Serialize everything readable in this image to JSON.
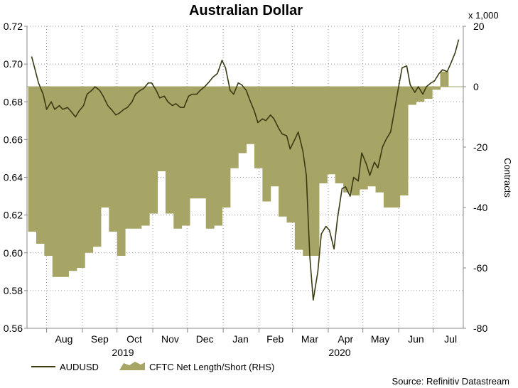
{
  "chart_data": {
    "type": "line",
    "title": "Australian Dollar",
    "right_axis_unit": "x 1,000",
    "ylabel_right": "Contracts",
    "source": "Source: Refinitiv Datastream",
    "year_labels": [
      "2019",
      "2020"
    ],
    "x_tick_labels": [
      "Aug",
      "Sep",
      "Oct",
      "Nov",
      "Dec",
      "Jan",
      "Feb",
      "Mar",
      "Apr",
      "May",
      "Jun",
      "Jul"
    ],
    "y_left": {
      "lim": [
        0.56,
        0.72
      ],
      "ticks": [
        "0.56",
        "0.58",
        "0.60",
        "0.62",
        "0.64",
        "0.66",
        "0.68",
        "0.70",
        "0.72"
      ]
    },
    "y_right": {
      "lim": [
        -80,
        20
      ],
      "ticks": [
        "-80",
        "-60",
        "-40",
        "-20",
        "0",
        "20"
      ]
    },
    "grid": true,
    "legend_position": "bottom-left",
    "colors": {
      "line": "#3b3a14",
      "area": "#a6a566",
      "grid": "#9a9a9a"
    },
    "series": [
      {
        "name": "AUDUSD",
        "axis": "left",
        "x": [
          "2019-07-19",
          "2019-07-22",
          "2019-07-25",
          "2019-07-29",
          "2019-08-01",
          "2019-08-05",
          "2019-08-08",
          "2019-08-12",
          "2019-08-15",
          "2019-08-19",
          "2019-08-22",
          "2019-08-26",
          "2019-08-29",
          "2019-09-02",
          "2019-09-05",
          "2019-09-09",
          "2019-09-12",
          "2019-09-16",
          "2019-09-19",
          "2019-09-23",
          "2019-09-26",
          "2019-09-30",
          "2019-10-03",
          "2019-10-07",
          "2019-10-10",
          "2019-10-14",
          "2019-10-17",
          "2019-10-21",
          "2019-10-24",
          "2019-10-28",
          "2019-10-31",
          "2019-11-04",
          "2019-11-07",
          "2019-11-11",
          "2019-11-14",
          "2019-11-18",
          "2019-11-21",
          "2019-11-25",
          "2019-11-28",
          "2019-12-02",
          "2019-12-05",
          "2019-12-09",
          "2019-12-12",
          "2019-12-16",
          "2019-12-19",
          "2019-12-23",
          "2019-12-27",
          "2019-12-31",
          "2020-01-03",
          "2020-01-07",
          "2020-01-10",
          "2020-01-14",
          "2020-01-17",
          "2020-01-21",
          "2020-01-24",
          "2020-01-28",
          "2020-01-31",
          "2020-02-04",
          "2020-02-07",
          "2020-02-11",
          "2020-02-14",
          "2020-02-18",
          "2020-02-21",
          "2020-02-25",
          "2020-02-28",
          "2020-03-03",
          "2020-03-06",
          "2020-03-10",
          "2020-03-13",
          "2020-03-16",
          "2020-03-19",
          "2020-03-23",
          "2020-03-26",
          "2020-03-30",
          "2020-04-02",
          "2020-04-06",
          "2020-04-09",
          "2020-04-13",
          "2020-04-16",
          "2020-04-20",
          "2020-04-23",
          "2020-04-27",
          "2020-04-30",
          "2020-05-04",
          "2020-05-07",
          "2020-05-11",
          "2020-05-14",
          "2020-05-18",
          "2020-05-21",
          "2020-05-25",
          "2020-05-28",
          "2020-06-01",
          "2020-06-04",
          "2020-06-08",
          "2020-06-11",
          "2020-06-15",
          "2020-06-18",
          "2020-06-22",
          "2020-06-25",
          "2020-06-29",
          "2020-07-02",
          "2020-07-06",
          "2020-07-09",
          "2020-07-13",
          "2020-07-16",
          "2020-07-20",
          "2020-07-23"
        ],
        "values": [
          0.704,
          0.697,
          0.69,
          0.684,
          0.676,
          0.68,
          0.676,
          0.678,
          0.676,
          0.677,
          0.675,
          0.672,
          0.675,
          0.678,
          0.684,
          0.686,
          0.688,
          0.686,
          0.683,
          0.678,
          0.676,
          0.673,
          0.674,
          0.676,
          0.677,
          0.68,
          0.684,
          0.686,
          0.687,
          0.69,
          0.69,
          0.686,
          0.682,
          0.683,
          0.68,
          0.678,
          0.679,
          0.677,
          0.677,
          0.683,
          0.684,
          0.684,
          0.686,
          0.688,
          0.69,
          0.693,
          0.695,
          0.702,
          0.698,
          0.686,
          0.684,
          0.69,
          0.689,
          0.686,
          0.681,
          0.675,
          0.669,
          0.671,
          0.67,
          0.673,
          0.671,
          0.666,
          0.663,
          0.662,
          0.655,
          0.66,
          0.664,
          0.654,
          0.641,
          0.598,
          0.575,
          0.59,
          0.61,
          0.614,
          0.612,
          0.602,
          0.618,
          0.634,
          0.635,
          0.63,
          0.64,
          0.638,
          0.653,
          0.647,
          0.641,
          0.648,
          0.645,
          0.656,
          0.66,
          0.664,
          0.674,
          0.688,
          0.698,
          0.699,
          0.689,
          0.685,
          0.688,
          0.684,
          0.688,
          0.69,
          0.691,
          0.695,
          0.697,
          0.696,
          0.7,
          0.706,
          0.713
        ]
      },
      {
        "name": "CFTC Net Length/Short (RHS)",
        "axis": "right",
        "type": "area",
        "x": [
          "2019-07-16",
          "2019-07-23",
          "2019-07-30",
          "2019-08-06",
          "2019-08-13",
          "2019-08-20",
          "2019-08-27",
          "2019-09-03",
          "2019-09-10",
          "2019-09-17",
          "2019-09-24",
          "2019-10-01",
          "2019-10-08",
          "2019-10-15",
          "2019-10-22",
          "2019-10-29",
          "2019-11-05",
          "2019-11-12",
          "2019-11-19",
          "2019-11-26",
          "2019-12-03",
          "2019-12-10",
          "2019-12-17",
          "2019-12-24",
          "2019-12-31",
          "2020-01-07",
          "2020-01-14",
          "2020-01-21",
          "2020-01-28",
          "2020-02-04",
          "2020-02-11",
          "2020-02-18",
          "2020-02-25",
          "2020-03-03",
          "2020-03-10",
          "2020-03-17",
          "2020-03-24",
          "2020-03-31",
          "2020-04-07",
          "2020-04-14",
          "2020-04-21",
          "2020-04-28",
          "2020-05-05",
          "2020-05-12",
          "2020-05-19",
          "2020-05-26",
          "2020-06-02",
          "2020-06-09",
          "2020-06-16",
          "2020-06-23",
          "2020-06-30",
          "2020-07-07",
          "2020-07-14",
          "2020-07-21"
        ],
        "values": [
          -48,
          -52,
          -56,
          -63,
          -63,
          -61,
          -60,
          -55,
          -53,
          -40,
          -48,
          -56,
          -47,
          -47,
          -46,
          -42,
          -28,
          -42,
          -47,
          -46,
          -37,
          -37,
          -47,
          -46,
          -40,
          -27,
          -22,
          -19,
          -27,
          -38,
          -33,
          -43,
          -45,
          -54,
          -56,
          -56,
          -32,
          -29,
          -32,
          -35,
          -36,
          -34,
          -33,
          -35,
          -40,
          -40,
          -36,
          -6,
          -5,
          -4,
          -1,
          5,
          0,
          0
        ]
      }
    ]
  }
}
